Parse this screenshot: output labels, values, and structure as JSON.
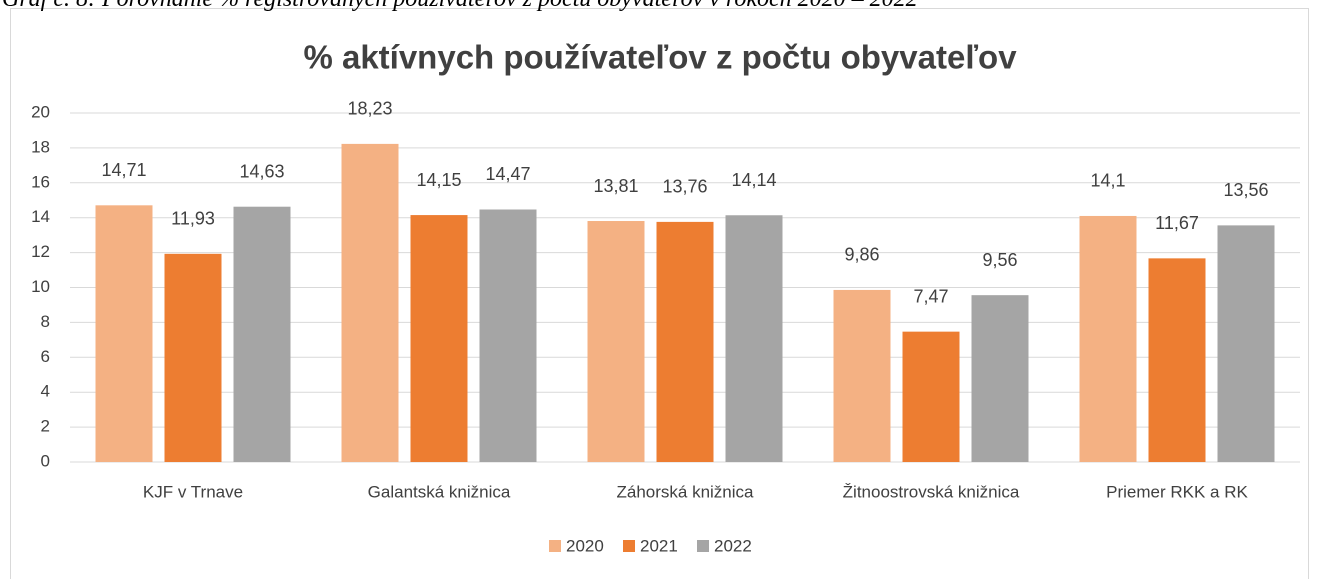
{
  "caption": "Graf č. 8: Porovnanie % registrovaných používateľov z počtu obyvateľov v rokoch 2020 – 2022",
  "chart_data": {
    "type": "bar",
    "title": "% aktívnych používateľov z počtu obyvateľov",
    "categories": [
      "KJF v Trnave",
      "Galantská knižnica",
      "Záhorská knižnica",
      "Žitnoostrovská knižnica",
      "Priemer RKK a RK"
    ],
    "series": [
      {
        "name": "2020",
        "color": "#f4b183",
        "values": [
          14.71,
          18.23,
          13.81,
          9.86,
          14.1
        ],
        "value_labels": [
          "14,71",
          "18,23",
          "13,81",
          "9,86",
          "14,1"
        ]
      },
      {
        "name": "2021",
        "color": "#ed7d31",
        "values": [
          11.93,
          14.15,
          13.76,
          7.47,
          11.67
        ],
        "value_labels": [
          "11,93",
          "14,15",
          "13,76",
          "7,47",
          "11,67"
        ]
      },
      {
        "name": "2022",
        "color": "#a5a5a5",
        "values": [
          14.63,
          14.47,
          14.14,
          9.56,
          13.56
        ],
        "value_labels": [
          "14,63",
          "14,47",
          "14,14",
          "9,56",
          "13,56"
        ]
      }
    ],
    "ylim": [
      0,
      20
    ],
    "yticks": [
      0,
      2,
      4,
      6,
      8,
      10,
      12,
      14,
      16,
      18,
      20
    ],
    "grid": true,
    "legend": "bottom"
  }
}
